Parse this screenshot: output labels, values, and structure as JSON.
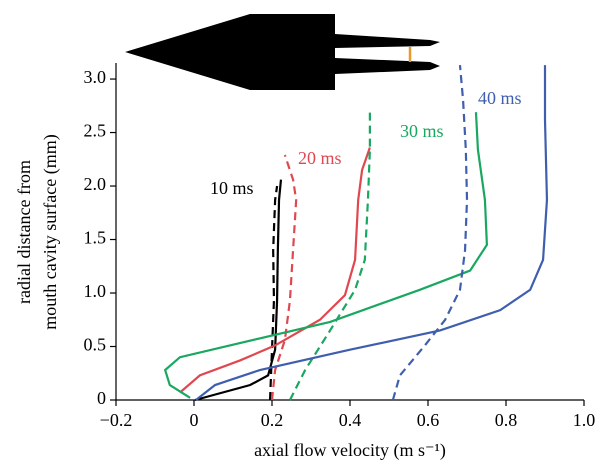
{
  "chart_data": {
    "type": "line",
    "xlabel": "axial flow velocity (m s⁻¹)",
    "ylabel": [
      "radial distance from",
      "mouth cavity surface (mm)"
    ],
    "xlim": [
      -0.2,
      1.0
    ],
    "xticks": [
      {
        "value": -0.2,
        "label": "−0.2"
      },
      0,
      0.2,
      0.4,
      0.6,
      0.8,
      {
        "value": 1.0,
        "label": "1.0"
      }
    ],
    "ylim": [
      0,
      3.15
    ],
    "yticks": [
      0,
      0.5,
      {
        "value": 1.0,
        "label": "1.0"
      },
      1.5,
      {
        "value": 2.0,
        "label": "2.0"
      },
      2.5,
      {
        "value": 3.0,
        "label": "3.0"
      }
    ],
    "series": [
      {
        "name": "10 ms",
        "color": "#000000",
        "solid": {
          "x": [
            0.003,
            0.144,
            0.19,
            0.208,
            0.213,
            0.215,
            0.218,
            0.223
          ],
          "values": [
            0,
            0.14,
            0.23,
            0.47,
            0.93,
            1.4,
            1.87,
            2.06
          ]
        },
        "dashed": {
          "x": [
            0.195,
            0.2,
            0.205,
            0.203,
            0.208,
            0.213
          ],
          "values": [
            0,
            0.47,
            0.93,
            1.4,
            1.87,
            2.0
          ]
        }
      },
      {
        "name": "20 ms",
        "color": "#e0484f",
        "solid": {
          "x": [
            -0.036,
            0.015,
            0.118,
            0.208,
            0.323,
            0.387,
            0.413,
            0.421,
            0.431,
            0.451
          ],
          "values": [
            0.07,
            0.23,
            0.37,
            0.51,
            0.75,
            0.98,
            1.31,
            1.87,
            2.15,
            2.36
          ]
        },
        "dashed": {
          "x": [
            0.2,
            0.208,
            0.233,
            0.246,
            0.254,
            0.262,
            0.254,
            0.233
          ],
          "values": [
            0,
            0.28,
            0.56,
            0.93,
            1.4,
            1.87,
            2.06,
            2.29
          ]
        }
      },
      {
        "name": "30 ms",
        "color": "#1aa760",
        "solid": {
          "x": [
            -0.01,
            -0.062,
            -0.074,
            -0.036,
            0.092,
            0.349,
            0.579,
            0.708,
            0.751,
            0.746,
            0.728,
            0.723
          ],
          "values": [
            0.02,
            0.14,
            0.28,
            0.4,
            0.51,
            0.73,
            1.03,
            1.21,
            1.45,
            1.87,
            2.34,
            2.69
          ]
        },
        "dashed": {
          "x": [
            0.246,
            0.285,
            0.349,
            0.413,
            0.438,
            0.446,
            0.451,
            0.451
          ],
          "values": [
            0,
            0.28,
            0.65,
            1.03,
            1.31,
            1.87,
            2.34,
            2.73
          ]
        }
      },
      {
        "name": "40 ms",
        "color": "#3f5fae",
        "solid": {
          "x": [
            0.005,
            0.054,
            0.169,
            0.4,
            0.631,
            0.785,
            0.862,
            0.895,
            0.905,
            0.9,
            0.9
          ],
          "values": [
            0,
            0.14,
            0.28,
            0.47,
            0.65,
            0.84,
            1.03,
            1.31,
            1.87,
            2.62,
            3.13
          ]
        },
        "dashed": {
          "x": [
            0.51,
            0.528,
            0.592,
            0.644,
            0.682,
            0.695,
            0.7,
            0.697,
            0.69,
            0.682
          ],
          "values": [
            0,
            0.23,
            0.51,
            0.75,
            1.03,
            1.4,
            1.87,
            2.34,
            2.8,
            3.13
          ]
        }
      }
    ]
  }
}
